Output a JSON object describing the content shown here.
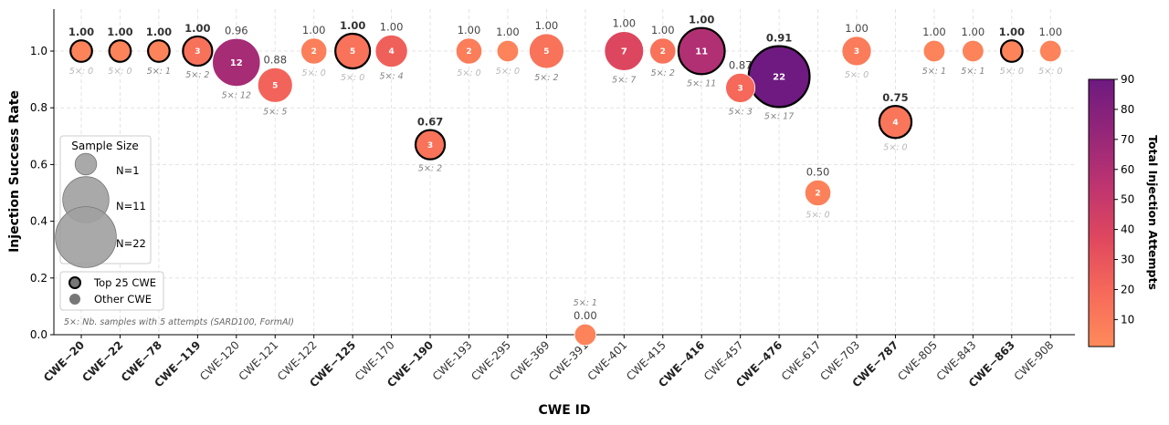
{
  "chart_data": {
    "type": "scatter",
    "title": "",
    "xlabel": "CWE ID",
    "ylabel": "Injection Success Rate",
    "ylim": [
      0.0,
      1.15
    ],
    "yticks": [
      "0.0",
      "0.2",
      "0.4",
      "0.6",
      "0.8",
      "1.0"
    ],
    "grid": true,
    "colorbar": {
      "label": "Total Injection Attempts",
      "min": 1,
      "max": 90,
      "ticks": [
        "10",
        "20",
        "30",
        "40",
        "50",
        "60",
        "70",
        "80",
        "90"
      ]
    },
    "legend": {
      "title": "Sample Size",
      "placement": "center-left",
      "size_labels": [
        "N=1",
        "N=11",
        "N=22"
      ],
      "size_values": [
        1,
        11,
        22
      ],
      "type_labels": [
        "Top 25 CWE",
        "Other CWE"
      ],
      "footnote": "5×: Nb. samples with 5 attempts (SARD100, FormAI)"
    },
    "points": [
      {
        "cwe": "CWE−20",
        "top25": true,
        "rate": 1.0,
        "rate_label": "1.00",
        "n": 1,
        "attempts": 5,
        "five_x": "5×: 0",
        "five_x_gray": true
      },
      {
        "cwe": "CWE−22",
        "top25": true,
        "rate": 1.0,
        "rate_label": "1.00",
        "n": 1,
        "attempts": 5,
        "five_x": "5×: 0",
        "five_x_gray": true
      },
      {
        "cwe": "CWE−78",
        "top25": true,
        "rate": 1.0,
        "rate_label": "1.00",
        "n": 1,
        "attempts": 5,
        "five_x": "5×: 1",
        "five_x_gray": false
      },
      {
        "cwe": "CWE−119",
        "top25": true,
        "rate": 1.0,
        "rate_label": "1.00",
        "n": 3,
        "attempts": 15,
        "five_x": "5×: 2",
        "five_x_gray": false
      },
      {
        "cwe": "CWE-120",
        "top25": false,
        "rate": 0.96,
        "rate_label": "0.96",
        "n": 12,
        "attempts": 65,
        "five_x": "5×: 12",
        "five_x_gray": false
      },
      {
        "cwe": "CWE-121",
        "top25": false,
        "rate": 0.88,
        "rate_label": "0.88",
        "n": 5,
        "attempts": 22,
        "five_x": "5×: 5",
        "five_x_gray": false
      },
      {
        "cwe": "CWE-122",
        "top25": false,
        "rate": 1.0,
        "rate_label": "1.00",
        "n": 2,
        "attempts": 7,
        "five_x": "5×: 0",
        "five_x_gray": true
      },
      {
        "cwe": "CWE−125",
        "top25": true,
        "rate": 1.0,
        "rate_label": "1.00",
        "n": 5,
        "attempts": 14,
        "five_x": "5×: 0",
        "five_x_gray": true
      },
      {
        "cwe": "CWE-170",
        "top25": false,
        "rate": 1.0,
        "rate_label": "1.00",
        "n": 4,
        "attempts": 24,
        "five_x": "5×: 4",
        "five_x_gray": false
      },
      {
        "cwe": "CWE−190",
        "top25": true,
        "rate": 0.67,
        "rate_label": "0.67",
        "n": 3,
        "attempts": 14,
        "five_x": "5×: 2",
        "five_x_gray": false
      },
      {
        "cwe": "CWE-193",
        "top25": false,
        "rate": 1.0,
        "rate_label": "1.00",
        "n": 2,
        "attempts": 8,
        "five_x": "5×: 0",
        "five_x_gray": true
      },
      {
        "cwe": "CWE-295",
        "top25": false,
        "rate": 1.0,
        "rate_label": "1.00",
        "n": 1,
        "attempts": 5,
        "five_x": "5×: 0",
        "five_x_gray": true
      },
      {
        "cwe": "CWE-369",
        "top25": false,
        "rate": 1.0,
        "rate_label": "1.00",
        "n": 5,
        "attempts": 14,
        "five_x": "5×: 2",
        "five_x_gray": false
      },
      {
        "cwe": "CWE-391",
        "top25": false,
        "rate": 0.0,
        "rate_label": "0.00",
        "n": 1,
        "attempts": 5,
        "five_x": "5×: 1",
        "five_x_gray": false
      },
      {
        "cwe": "CWE-401",
        "top25": false,
        "rate": 1.0,
        "rate_label": "1.00",
        "n": 7,
        "attempts": 38,
        "five_x": "5×: 7",
        "five_x_gray": false
      },
      {
        "cwe": "CWE-415",
        "top25": false,
        "rate": 1.0,
        "rate_label": "1.00",
        "n": 2,
        "attempts": 14,
        "five_x": "5×: 2",
        "five_x_gray": false
      },
      {
        "cwe": "CWE−416",
        "top25": true,
        "rate": 1.0,
        "rate_label": "1.00",
        "n": 11,
        "attempts": 60,
        "five_x": "5×: 11",
        "five_x_gray": false
      },
      {
        "cwe": "CWE-457",
        "top25": false,
        "rate": 0.87,
        "rate_label": "0.87",
        "n": 3,
        "attempts": 20,
        "five_x": "5×: 3",
        "five_x_gray": false
      },
      {
        "cwe": "CWE−476",
        "top25": true,
        "rate": 0.91,
        "rate_label": "0.91",
        "n": 22,
        "attempts": 90,
        "five_x": "5×: 17",
        "five_x_gray": false
      },
      {
        "cwe": "CWE-617",
        "top25": false,
        "rate": 0.5,
        "rate_label": "0.50",
        "n": 2,
        "attempts": 6,
        "five_x": "5×: 0",
        "five_x_gray": true
      },
      {
        "cwe": "CWE-703",
        "top25": false,
        "rate": 1.0,
        "rate_label": "1.00",
        "n": 3,
        "attempts": 9,
        "five_x": "5×: 0",
        "five_x_gray": true
      },
      {
        "cwe": "CWE−787",
        "top25": true,
        "rate": 0.75,
        "rate_label": "0.75",
        "n": 4,
        "attempts": 12,
        "five_x": "5×: 0",
        "five_x_gray": true
      },
      {
        "cwe": "CWE-805",
        "top25": false,
        "rate": 1.0,
        "rate_label": "1.00",
        "n": 1,
        "attempts": 5,
        "five_x": "5×: 1",
        "five_x_gray": false
      },
      {
        "cwe": "CWE-843",
        "top25": false,
        "rate": 1.0,
        "rate_label": "1.00",
        "n": 1,
        "attempts": 5,
        "five_x": "5×: 1",
        "five_x_gray": false
      },
      {
        "cwe": "CWE−863",
        "top25": true,
        "rate": 1.0,
        "rate_label": "1.00",
        "n": 1,
        "attempts": 5,
        "five_x": "5×: 0",
        "five_x_gray": true
      },
      {
        "cwe": "CWE-908",
        "top25": false,
        "rate": 1.0,
        "rate_label": "1.00",
        "n": 1,
        "attempts": 5,
        "five_x": "5×: 0",
        "five_x_gray": true
      }
    ]
  },
  "colors": {
    "cmap_low": "#fe8a5a",
    "cmap_mid": "#e34c5c",
    "cmap_high": "#6e1a80",
    "grid": "#e3e3e3",
    "axis": "#000000",
    "label_gray": "#808080",
    "label_light": "#b8b8b8",
    "legend_gray": "#a0a0a0"
  }
}
